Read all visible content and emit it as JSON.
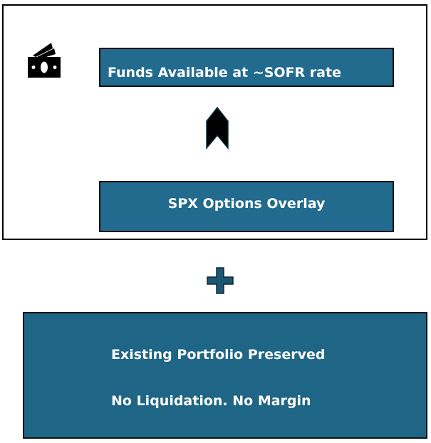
{
  "top_section": {
    "icon": "money-icon",
    "funds_label": "Funds Available at ~SOFR rate",
    "arrow_icon": "chevron-up-arrow-icon",
    "overlay_label": "SPX Options Overlay"
  },
  "connector_icon": "plus-icon",
  "bottom_section": {
    "line1": "Existing Portfolio Preserved",
    "line2": "No Liquidation. No Margin"
  },
  "colors": {
    "box": "#226b8f",
    "bottom_box": "#1f6585",
    "plus": "#1d5670"
  }
}
